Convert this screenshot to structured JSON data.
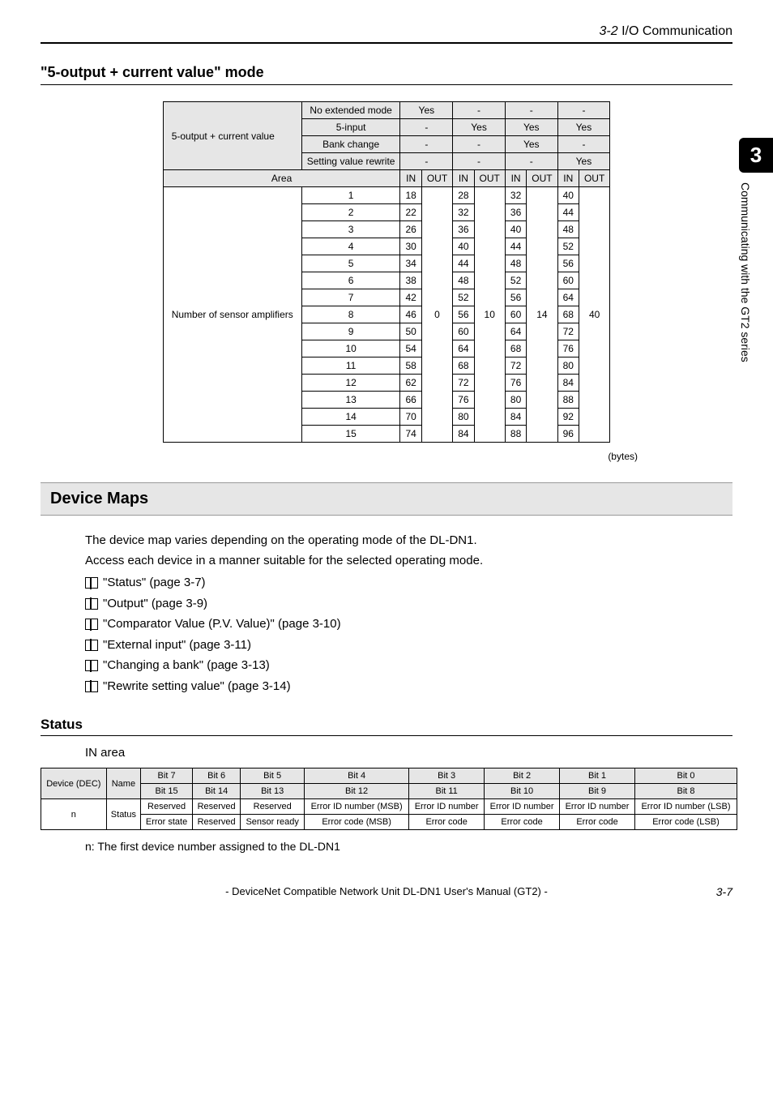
{
  "header": {
    "section_no": "3-2",
    "section_title": "I/O Communication"
  },
  "heading1": "\"5-output + current value\" mode",
  "mode_table": {
    "row_group_label": "5-output + current\nvalue",
    "row_headers": [
      "No extended mode",
      "5-input",
      "Bank change",
      "Setting value rewrite"
    ],
    "header_cells": {
      "r1": [
        "Yes",
        "-",
        "-",
        "-"
      ],
      "r2": [
        "-",
        "Yes",
        "Yes",
        "Yes"
      ],
      "r3": [
        "-",
        "-",
        "Yes",
        "-"
      ],
      "r4": [
        "-",
        "-",
        "-",
        "Yes"
      ]
    },
    "area_label": "Area",
    "inout_labels": [
      "IN",
      "OUT",
      "IN",
      "OUT",
      "IN",
      "OUT",
      "IN",
      "OUT"
    ],
    "body_group_label": "Number of sensor\namplifiers",
    "body": [
      {
        "n": "1",
        "c0": "18",
        "c2": "28",
        "c4": "32",
        "c6": "40"
      },
      {
        "n": "2",
        "c0": "22",
        "c2": "32",
        "c4": "36",
        "c6": "44"
      },
      {
        "n": "3",
        "c0": "26",
        "c2": "36",
        "c4": "40",
        "c6": "48"
      },
      {
        "n": "4",
        "c0": "30",
        "c2": "40",
        "c4": "44",
        "c6": "52"
      },
      {
        "n": "5",
        "c0": "34",
        "c2": "44",
        "c4": "48",
        "c6": "56"
      },
      {
        "n": "6",
        "c0": "38",
        "c2": "48",
        "c4": "52",
        "c6": "60"
      },
      {
        "n": "7",
        "c0": "42",
        "c2": "52",
        "c4": "56",
        "c6": "64"
      },
      {
        "n": "8",
        "c0": "46",
        "c2": "56",
        "c4": "60",
        "c6": "68"
      },
      {
        "n": "9",
        "c0": "50",
        "c2": "60",
        "c4": "64",
        "c6": "72"
      },
      {
        "n": "10",
        "c0": "54",
        "c2": "64",
        "c4": "68",
        "c6": "76"
      },
      {
        "n": "11",
        "c0": "58",
        "c2": "68",
        "c4": "72",
        "c6": "80"
      },
      {
        "n": "12",
        "c0": "62",
        "c2": "72",
        "c4": "76",
        "c6": "84"
      },
      {
        "n": "13",
        "c0": "66",
        "c2": "76",
        "c4": "80",
        "c6": "88"
      },
      {
        "n": "14",
        "c0": "70",
        "c2": "80",
        "c4": "84",
        "c6": "92"
      },
      {
        "n": "15",
        "c0": "74",
        "c2": "84",
        "c4": "88",
        "c6": "96"
      }
    ],
    "out_merge": {
      "c1": "0",
      "c3": "10",
      "c5": "14",
      "c7": "40"
    },
    "bytes_label": "(bytes)"
  },
  "device_maps": {
    "heading": "Device Maps",
    "para1": "The device map varies depending on the operating mode of the DL-DN1.",
    "para2": "Access each device in a manner suitable for the selected operating mode.",
    "refs": [
      "\"Status\" (page 3-7)",
      "\"Output\" (page 3-9)",
      "\"Comparator Value (P.V. Value)\" (page 3-10)",
      "\"External input\" (page 3-11)",
      "\"Changing a bank\" (page 3-13)",
      "\"Rewrite setting value\" (page 3-14)"
    ]
  },
  "status": {
    "heading": "Status",
    "in_area": "IN area",
    "head_row1": [
      "Device\n(DEC)",
      "Name",
      "Bit 7",
      "Bit 6",
      "Bit 5",
      "Bit 4",
      "Bit 3",
      "Bit 2",
      "Bit 1",
      "Bit 0"
    ],
    "head_row2": [
      "Bit 15",
      "Bit 14",
      "Bit 13",
      "Bit 12",
      "Bit 11",
      "Bit 10",
      "Bit 9",
      "Bit 8"
    ],
    "body_row1": [
      "n",
      "Status",
      "Reserved",
      "Reserved",
      "Reserved",
      "Error ID number (MSB)",
      "Error ID number",
      "Error ID number",
      "Error ID number",
      "Error ID number (LSB)"
    ],
    "body_row2": [
      "Error state",
      "Reserved",
      "Sensor ready",
      "Error code (MSB)",
      "Error code",
      "Error code",
      "Error code",
      "Error code (LSB)"
    ],
    "note": "n: The first device number assigned to the DL-DN1"
  },
  "side_tab": {
    "chapter": "3",
    "text": "Communicating with the GT2 series"
  },
  "footer": {
    "text": "- DeviceNet Compatible Network Unit DL-DN1 User's Manual (GT2) -",
    "pageno": "3-7"
  }
}
